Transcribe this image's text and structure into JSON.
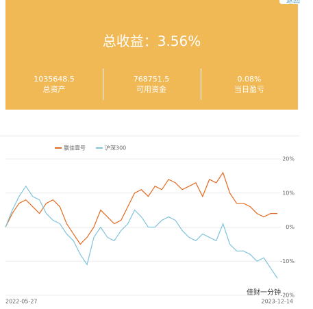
{
  "header": {
    "back_button": "返回",
    "title": "总收益：3.56%"
  },
  "stats": [
    {
      "value": "1035648.5",
      "label": "总资产"
    },
    {
      "value": "768751.5",
      "label": "可用资金"
    },
    {
      "value": "0.08%",
      "label": "当日盈亏"
    }
  ],
  "watermark": "佳财一分钟",
  "chart_data": {
    "type": "line",
    "categories": [
      "2022-05-27",
      null,
      null,
      null,
      null,
      null,
      null,
      null,
      null,
      null,
      null,
      null,
      null,
      null,
      null,
      null,
      null,
      null,
      null,
      null,
      null,
      null,
      null,
      null,
      null,
      null,
      null,
      null,
      null,
      null,
      null,
      null,
      null,
      null,
      null,
      null,
      null,
      null,
      null,
      null,
      "2023-12-14"
    ],
    "series": [
      {
        "name": "赢佳壹号",
        "color": "#e2691f",
        "values": [
          0,
          4,
          7,
          8,
          6,
          4,
          7,
          8,
          6,
          1,
          -2,
          -5,
          -3,
          0,
          5,
          3,
          1,
          2,
          6,
          10,
          11,
          9,
          12,
          11,
          14,
          13,
          11,
          12,
          13,
          9,
          14,
          13,
          16,
          10,
          7,
          7,
          6,
          4,
          3,
          4,
          4
        ]
      },
      {
        "name": "沪深300",
        "color": "#7fc3dc",
        "values": [
          0,
          5,
          9,
          12,
          9,
          8,
          4,
          2,
          1,
          -2,
          -4,
          -8,
          -11,
          -3,
          0,
          -3,
          -4,
          -1,
          1,
          5,
          3,
          0,
          0,
          2,
          3,
          2,
          -1,
          -3,
          -4,
          -2,
          -3,
          -4,
          1,
          -5,
          -7,
          -7,
          -8,
          -10,
          -9,
          -12,
          -15
        ]
      }
    ],
    "ylim": [
      -20,
      20
    ],
    "yticks": [
      {
        "value": 20,
        "label": "20%"
      },
      {
        "value": 10,
        "label": "10%"
      },
      {
        "value": 0,
        "label": "0%"
      },
      {
        "value": -10,
        "label": "-10%"
      },
      {
        "value": -20,
        "label": "-20%"
      }
    ],
    "grid": true
  }
}
